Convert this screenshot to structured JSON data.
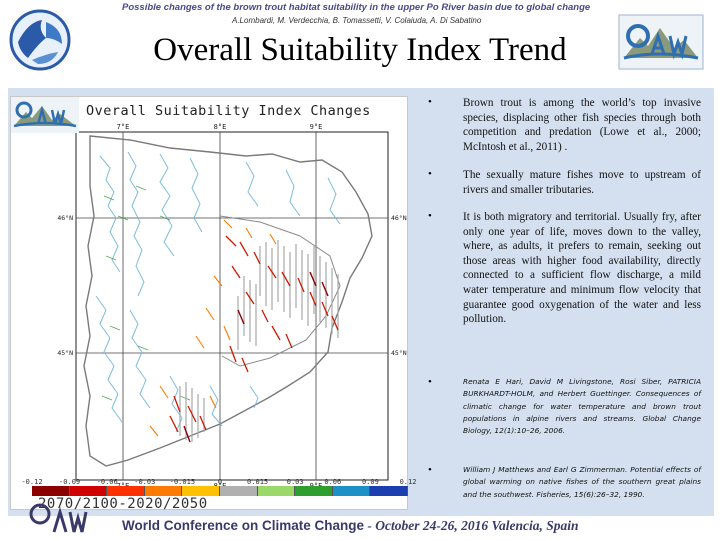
{
  "header": {
    "conference_title": "Possible changes of the brown trout habitat suitability in the upper Po River basin due to global change",
    "authors": "A.Lombardi, M. Verdecchia, B. Tomassetti, V. Colaiuda, A. Di Sabatino",
    "slide_title": "Overall Suitability Index Trend",
    "colors": {
      "title_band_text": "#4a4a8a",
      "panel_bg": "#d4e0ef"
    }
  },
  "map": {
    "title": "Overall Suitability Index Changes",
    "top_ticks": [
      "7°E",
      "8°E",
      "9°E"
    ],
    "bottom_ticks": [
      "7°E",
      "8°E",
      "9°E"
    ],
    "left_ticks": [
      "46°N",
      "45°N"
    ],
    "right_ticks": [
      "46°N",
      "45°N"
    ],
    "period": "2070/2100-2020/2050",
    "colorbar": {
      "ticks": [
        "-0.12",
        "-0.09",
        "-0.06",
        "-0.03",
        "-0.015",
        "0",
        "0.015",
        "0.03",
        "0.06",
        "0.09",
        "0.12"
      ],
      "colors": [
        "#8b0000",
        "#d00000",
        "#ff3000",
        "#ff7a00",
        "#ffc000",
        "#b0b0b0",
        "#9bd86a",
        "#2e9e2e",
        "#1e90c8",
        "#1c3fb0"
      ]
    }
  },
  "bullets": [
    {
      "text": "Brown trout is among the world’s top invasive species, displacing other fish species through both competition and predation (Lowe et al., 2000; McIntosh et al., 2011) ."
    },
    {
      "text": "The sexually mature fishes move to upstream of rivers and smaller tributaries."
    },
    {
      "text": "It is both migratory and territorial. Usually fry, after only one year of life, moves down to the valley, where, as adults, it prefers to remain, seeking out those areas with higher food availability, directly connected to a sufficient flow discharge, a mild water temperature and minimum flow velocity that guarantee good oxygenation of the water and less pollution."
    }
  ],
  "references": [
    {
      "text": "Renata E Hari, David M Livingstone, Rosi Siber, PATRICIA BURKHARDT-HOLM, and Herbert Guettinger. Consequences of climatic change for water temperature and brown trout populations in alpine rivers and streams. Global Change Biology, 12(1):10–26, 2006."
    },
    {
      "text": "William J Matthews and Earl G Zimmerman. Potential effects of global warming on native fishes of the southern great plains and the southwest. Fisheries, 15(6):26–32, 1990."
    }
  ],
  "footer": {
    "text_a": "World Conference on Climate Change",
    "text_b": " - October 24-26, 2016 Valencia, Spain"
  }
}
